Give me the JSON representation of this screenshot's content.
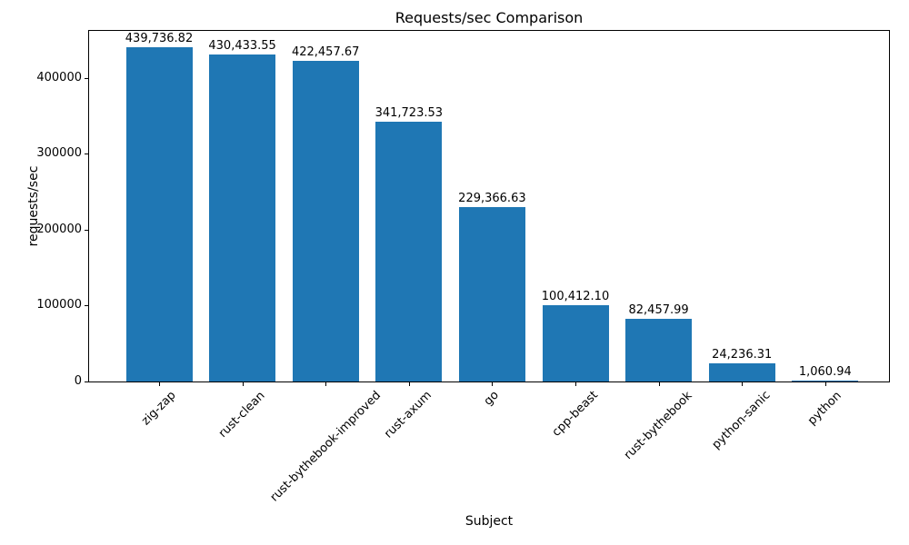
{
  "chart_data": {
    "type": "bar",
    "title": "Requests/sec Comparison",
    "xlabel": "Subject",
    "ylabel": "requests/sec",
    "categories": [
      "zig-zap",
      "rust-clean",
      "rust-bythebook-improved",
      "rust-axum",
      "go",
      "cpp-beast",
      "rust-bythebook",
      "python-sanic",
      "python"
    ],
    "values": [
      439736.82,
      430433.55,
      422457.67,
      341723.53,
      229366.63,
      100412.1,
      82457.99,
      24236.31,
      1060.94
    ],
    "value_labels": [
      "439,736.82",
      "430,433.55",
      "422,457.67",
      "341,723.53",
      "229,366.63",
      "100,412.10",
      "82,457.99",
      "24,236.31",
      "1,060.94"
    ],
    "yticks": [
      0,
      100000,
      200000,
      300000,
      400000
    ],
    "ylim": [
      0,
      461724
    ],
    "bar_color": "#1f77b4",
    "grid": false,
    "legend": null,
    "x_tick_rotation_deg": 45
  }
}
